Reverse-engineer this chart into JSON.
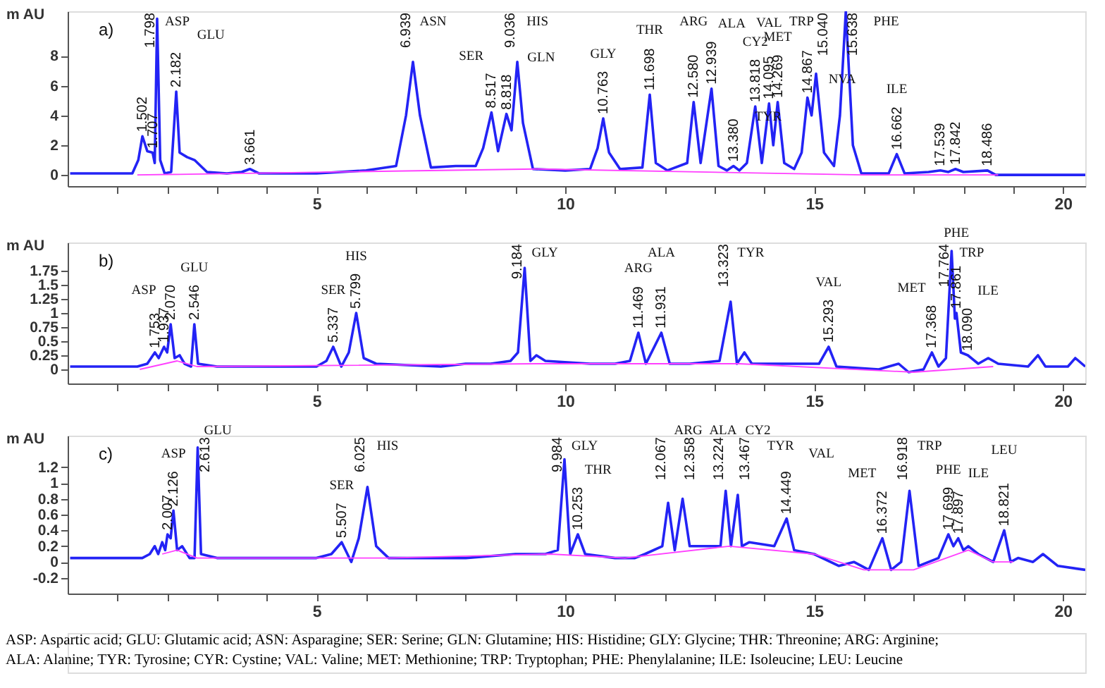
{
  "chart_data": [
    {
      "type": "line",
      "title": "a)",
      "ylabel": "m AU",
      "xlim": [
        0,
        20.45
      ],
      "ylim": [
        -0.75,
        11.0
      ],
      "yticks": [
        0,
        2,
        4,
        6,
        8
      ],
      "xticks": [
        {
          "value": 1,
          "label": null
        },
        {
          "value": 2,
          "label": null
        },
        {
          "value": 3,
          "label": null
        },
        {
          "value": 4,
          "label": null
        },
        5,
        {
          "value": 6,
          "label": null
        },
        {
          "value": 7,
          "label": null
        },
        {
          "value": 8,
          "label": null
        },
        {
          "value": 9,
          "label": null
        },
        10,
        {
          "value": 11,
          "label": null
        },
        {
          "value": 12,
          "label": null
        },
        {
          "value": 13,
          "label": null
        },
        {
          "value": 14,
          "label": null
        },
        15,
        {
          "value": 16,
          "label": null
        },
        {
          "value": 17,
          "label": null
        },
        {
          "value": 18,
          "label": null
        },
        {
          "value": 19,
          "label": null
        },
        20
      ],
      "grid": false,
      "series": [
        {
          "type": "line",
          "color": "#2323f5",
          "x": [
            0.05,
            1.3,
            1.42,
            1.502,
            1.6,
            1.707,
            1.75,
            1.798,
            1.86,
            1.95,
            2.08,
            2.182,
            2.25,
            2.4,
            2.55,
            2.8,
            3.2,
            3.5,
            3.661,
            3.85,
            5.0,
            6.0,
            6.6,
            6.8,
            6.939,
            7.08,
            7.3,
            7.8,
            8.2,
            8.35,
            8.517,
            8.65,
            8.818,
            8.92,
            9.036,
            9.15,
            9.35,
            10.0,
            10.5,
            10.65,
            10.763,
            10.88,
            11.1,
            11.55,
            11.698,
            11.82,
            12.05,
            12.45,
            12.58,
            12.72,
            12.939,
            13.08,
            13.25,
            13.38,
            13.5,
            13.65,
            13.818,
            13.95,
            14.095,
            14.18,
            14.269,
            14.4,
            14.6,
            14.75,
            14.867,
            14.95,
            15.04,
            15.2,
            15.4,
            15.52,
            15.638,
            15.78,
            15.95,
            16.5,
            16.662,
            16.82,
            17.3,
            17.539,
            17.7,
            17.842,
            18.0,
            18.486,
            18.65,
            20.45
          ],
          "values": [
            0.1,
            0.1,
            1.0,
            2.6,
            1.6,
            1.5,
            0.8,
            10.5,
            1.0,
            0.1,
            0.2,
            5.6,
            1.5,
            1.2,
            1.0,
            0.2,
            0.1,
            0.2,
            0.4,
            0.1,
            0.1,
            0.3,
            0.6,
            4.0,
            7.6,
            4.0,
            0.5,
            0.6,
            0.6,
            1.8,
            4.2,
            1.6,
            4.1,
            3.0,
            7.6,
            3.5,
            0.4,
            0.3,
            0.4,
            1.8,
            3.8,
            1.5,
            0.4,
            0.5,
            5.4,
            0.8,
            0.3,
            0.8,
            4.9,
            0.8,
            5.8,
            0.6,
            0.3,
            0.6,
            0.3,
            0.8,
            4.6,
            0.8,
            4.8,
            2.0,
            4.9,
            0.8,
            0.4,
            1.5,
            5.2,
            4.0,
            6.8,
            1.5,
            0.6,
            4.0,
            11.0,
            2.0,
            0.1,
            0.1,
            1.4,
            0.1,
            0.2,
            0.3,
            0.2,
            0.4,
            0.2,
            0.3,
            0.0,
            0.0
          ]
        },
        {
          "type": "line",
          "color": "#ff40ff",
          "x": [
            1.4,
            9.4,
            16.0,
            18.7
          ],
          "values": [
            0.0,
            0.4,
            0.0,
            0.0
          ]
        }
      ],
      "annotations": [
        {
          "text": "1.502",
          "x": 1.502,
          "y": 2.6
        },
        {
          "text": "1.707",
          "x": 1.707,
          "y": 1.5
        },
        {
          "text": "1.798",
          "x": 1.798,
          "y": 10.5
        },
        "ASP",
        {
          "text": "2.182",
          "x": 2.182,
          "y": 5.6
        },
        "GLU",
        {
          "text": "3.661",
          "x": 3.661,
          "y": 0.4
        },
        {
          "text": "6.939",
          "x": 6.939,
          "y": 7.6
        },
        "ASN",
        {
          "text": "8.517",
          "x": 8.517,
          "y": 4.2
        },
        "SER",
        {
          "text": "8.818",
          "x": 8.818,
          "y": 4.1
        },
        "GLN",
        {
          "text": "9.036",
          "x": 9.036,
          "y": 7.6
        },
        "HIS",
        {
          "text": "10.763",
          "x": 10.763,
          "y": 3.8
        },
        "GLY",
        {
          "text": "11.698",
          "x": 11.698,
          "y": 5.4
        },
        "THR",
        {
          "text": "12.580",
          "x": 12.58,
          "y": 4.9
        },
        "ARG",
        {
          "text": "12.939",
          "x": 12.939,
          "y": 5.8
        },
        "ALA",
        {
          "text": "13.380",
          "x": 13.38,
          "y": 0.6
        },
        "TYR",
        {
          "text": "13.818",
          "x": 13.818,
          "y": 4.6
        },
        "CY2",
        {
          "text": "14.095",
          "x": 14.095,
          "y": 4.8
        },
        "VAL",
        {
          "text": "14.269",
          "x": 14.269,
          "y": 4.9
        },
        "MET",
        {
          "text": "14.867",
          "x": 14.867,
          "y": 5.2
        },
        "NVA",
        {
          "text": "15.040",
          "x": 15.04,
          "y": 6.8
        },
        "TRP",
        {
          "text": "15.638",
          "x": 15.638,
          "y": 11.0
        },
        "PHE",
        {
          "text": "16.662",
          "x": 16.662,
          "y": 1.4
        },
        "ILE",
        {
          "text": "17.539",
          "x": 17.539,
          "y": 0.3
        },
        {
          "text": "17.842",
          "x": 17.842,
          "y": 0.4
        },
        {
          "text": "18.486",
          "x": 18.486,
          "y": 0.3
        }
      ]
    },
    {
      "type": "line",
      "title": "b)",
      "ylabel": "m AU",
      "xlim": [
        0,
        20.45
      ],
      "ylim": [
        -0.25,
        2.25
      ],
      "yticks": [
        0,
        0.25,
        0.5,
        0.75,
        1,
        1.25,
        1.5,
        1.75
      ],
      "xticks": [
        {
          "value": 1,
          "label": null
        },
        {
          "value": 2,
          "label": null
        },
        {
          "value": 3,
          "label": null
        },
        {
          "value": 4,
          "label": null
        },
        5,
        {
          "value": 6,
          "label": null
        },
        {
          "value": 7,
          "label": null
        },
        {
          "value": 8,
          "label": null
        },
        {
          "value": 9,
          "label": null
        },
        10,
        {
          "value": 11,
          "label": null
        },
        {
          "value": 12,
          "label": null
        },
        {
          "value": 13,
          "label": null
        },
        {
          "value": 14,
          "label": null
        },
        15,
        {
          "value": 16,
          "label": null
        },
        {
          "value": 17,
          "label": null
        },
        {
          "value": 18,
          "label": null
        },
        {
          "value": 19,
          "label": null
        },
        20
      ],
      "grid": false,
      "series": [
        {
          "type": "line",
          "color": "#2323f5",
          "x": [
            0.05,
            1.4,
            1.6,
            1.753,
            1.83,
            1.937,
            2.0,
            2.07,
            2.15,
            2.25,
            2.35,
            2.48,
            2.546,
            2.62,
            3.0,
            5.0,
            5.2,
            5.337,
            5.5,
            5.65,
            5.799,
            5.95,
            6.2,
            7.5,
            8.0,
            8.5,
            8.9,
            9.05,
            9.184,
            9.3,
            9.42,
            9.6,
            10.5,
            11.0,
            11.3,
            11.469,
            11.62,
            11.931,
            12.1,
            12.5,
            13.1,
            13.323,
            13.45,
            13.6,
            13.75,
            14.8,
            15.1,
            15.293,
            15.45,
            16.3,
            16.7,
            16.9,
            17.2,
            17.368,
            17.5,
            17.65,
            17.764,
            17.83,
            17.861,
            17.95,
            18.09,
            18.3,
            18.5,
            18.7,
            19.3,
            19.5,
            19.65,
            20.1,
            20.25,
            20.45
          ],
          "values": [
            0.05,
            0.05,
            0.1,
            0.3,
            0.2,
            0.4,
            0.3,
            0.8,
            0.2,
            0.25,
            0.1,
            0.05,
            0.8,
            0.1,
            0.05,
            0.05,
            0.15,
            0.4,
            0.05,
            0.3,
            1.0,
            0.2,
            0.1,
            0.05,
            0.1,
            0.1,
            0.15,
            0.3,
            1.8,
            0.15,
            0.25,
            0.15,
            0.1,
            0.1,
            0.15,
            0.65,
            0.1,
            0.65,
            0.1,
            0.1,
            0.15,
            1.2,
            0.1,
            0.3,
            0.1,
            0.1,
            0.1,
            0.4,
            0.05,
            0.0,
            0.1,
            -0.05,
            0.0,
            0.3,
            0.05,
            0.2,
            2.1,
            0.9,
            1.0,
            0.3,
            0.25,
            0.1,
            0.2,
            0.1,
            0.05,
            0.25,
            0.05,
            0.05,
            0.2,
            0.05
          ]
        },
        {
          "type": "line",
          "color": "#ff40ff",
          "x": [
            1.45,
            2.2,
            2.6,
            9.4,
            13.5,
            17.0,
            18.6
          ],
          "values": [
            0.0,
            0.15,
            0.05,
            0.1,
            0.1,
            -0.05,
            0.05
          ]
        }
      ],
      "annotations": [
        {
          "text": "1.753",
          "x": 1.753,
          "y": 0.3
        },
        {
          "text": "1.937",
          "x": 1.937,
          "y": 0.4
        },
        "ASP",
        {
          "text": "2.070",
          "x": 2.07,
          "y": 0.8
        },
        {
          "text": "2.546",
          "x": 2.546,
          "y": 0.8
        },
        "GLU",
        {
          "text": "5.337",
          "x": 5.337,
          "y": 0.4
        },
        "SER",
        {
          "text": "5.799",
          "x": 5.799,
          "y": 1.0
        },
        "HIS",
        {
          "text": "9.184",
          "x": 9.184,
          "y": 1.8
        },
        "GLY",
        {
          "text": "11.469",
          "x": 11.469,
          "y": 0.65
        },
        "ARG",
        {
          "text": "11.931",
          "x": 11.931,
          "y": 0.65
        },
        "ALA",
        {
          "text": "13.323",
          "x": 13.323,
          "y": 1.2
        },
        "TYR",
        {
          "text": "15.293",
          "x": 15.293,
          "y": 0.4
        },
        "VAL",
        {
          "text": "17.368",
          "x": 17.368,
          "y": 0.3
        },
        "MET",
        {
          "text": "17.764",
          "x": 17.764,
          "y": 2.1
        },
        "TRP",
        {
          "text": "17.861",
          "x": 17.861,
          "y": 1.0
        },
        "PHE",
        {
          "text": "18.090",
          "x": 18.09,
          "y": 0.25
        },
        "ILE"
      ]
    },
    {
      "type": "line",
      "title": "c)",
      "ylabel": "m AU",
      "xlim": [
        0,
        20.45
      ],
      "ylim": [
        -0.4,
        1.6
      ],
      "yticks": [
        -0.2,
        0,
        0.2,
        0.4,
        0.6,
        0.8,
        1,
        1.2
      ],
      "xticks": [
        {
          "value": 1,
          "label": null
        },
        {
          "value": 2,
          "label": null
        },
        {
          "value": 3,
          "label": null
        },
        {
          "value": 4,
          "label": null
        },
        5,
        {
          "value": 6,
          "label": null
        },
        {
          "value": 7,
          "label": null
        },
        {
          "value": 8,
          "label": null
        },
        {
          "value": 9,
          "label": null
        },
        10,
        {
          "value": 11,
          "label": null
        },
        {
          "value": 12,
          "label": null
        },
        {
          "value": 13,
          "label": null
        },
        {
          "value": 14,
          "label": null
        },
        15,
        {
          "value": 16,
          "label": null
        },
        {
          "value": 17,
          "label": null
        },
        {
          "value": 18,
          "label": null
        },
        {
          "value": 19,
          "label": null
        },
        20
      ],
      "grid": false,
      "series": [
        {
          "type": "line",
          "color": "#2323f5",
          "x": [
            0.05,
            1.5,
            1.65,
            1.75,
            1.82,
            1.9,
            1.96,
            2.007,
            2.07,
            2.126,
            2.2,
            2.3,
            2.45,
            2.55,
            2.613,
            2.68,
            3.0,
            3.4,
            5.0,
            5.3,
            5.507,
            5.7,
            5.85,
            6.025,
            6.2,
            6.45,
            8.0,
            9.0,
            9.6,
            9.85,
            9.984,
            10.1,
            10.253,
            10.4,
            11.0,
            11.4,
            11.6,
            11.95,
            12.067,
            12.2,
            12.358,
            12.5,
            13.0,
            13.12,
            13.224,
            13.33,
            13.467,
            13.55,
            13.7,
            14.2,
            14.449,
            14.6,
            15.0,
            15.5,
            15.8,
            16.1,
            16.372,
            16.55,
            16.75,
            16.918,
            17.1,
            17.5,
            17.699,
            17.8,
            17.897,
            18.0,
            18.1,
            18.3,
            18.6,
            18.821,
            18.95,
            19.1,
            19.4,
            19.6,
            19.9,
            20.45
          ],
          "values": [
            0.05,
            0.05,
            0.1,
            0.2,
            0.1,
            0.25,
            0.15,
            0.35,
            0.3,
            0.65,
            0.15,
            0.2,
            0.05,
            0.05,
            1.45,
            0.1,
            0.05,
            0.05,
            0.05,
            0.1,
            0.25,
            0.0,
            0.3,
            0.95,
            0.2,
            0.05,
            0.05,
            0.1,
            0.1,
            0.15,
            1.3,
            0.1,
            0.35,
            0.1,
            0.05,
            0.05,
            0.1,
            0.2,
            0.75,
            0.15,
            0.8,
            0.2,
            0.2,
            0.2,
            0.9,
            0.2,
            0.85,
            0.2,
            0.25,
            0.2,
            0.55,
            0.15,
            0.1,
            -0.05,
            0.0,
            -0.1,
            0.3,
            -0.1,
            0.0,
            0.9,
            -0.05,
            0.05,
            0.35,
            0.2,
            0.3,
            0.15,
            0.2,
            0.1,
            0.0,
            0.4,
            0.0,
            0.05,
            0.0,
            0.1,
            -0.05,
            -0.1
          ]
        },
        {
          "type": "line",
          "color": "#ff40ff",
          "x": [
            1.9,
            2.2,
            2.6,
            6.4,
            9.7,
            11.2,
            13.3,
            15.0,
            16.0,
            17.0,
            18.1,
            18.6,
            19.0
          ],
          "values": [
            0.1,
            0.15,
            0.05,
            0.05,
            0.1,
            0.05,
            0.2,
            0.1,
            -0.1,
            -0.1,
            0.15,
            0.0,
            0.0
          ]
        }
      ],
      "annotations": [
        {
          "text": "2.007",
          "x": 2.007,
          "y": 0.35
        },
        {
          "text": "2.126",
          "x": 2.126,
          "y": 0.65
        },
        "ASP",
        {
          "text": "2.613",
          "x": 2.613,
          "y": 1.45
        },
        "GLU",
        {
          "text": "5.507",
          "x": 5.507,
          "y": 0.25
        },
        "SER",
        {
          "text": "6.025",
          "x": 6.025,
          "y": 0.95
        },
        "HIS",
        {
          "text": "9.984",
          "x": 9.984,
          "y": 1.3
        },
        "GLY",
        {
          "text": "10.253",
          "x": 10.253,
          "y": 0.35
        },
        "THR",
        {
          "text": "12.067",
          "x": 12.067,
          "y": 0.75
        },
        "ARG",
        {
          "text": "12.358",
          "x": 12.358,
          "y": 0.8
        },
        "ALA",
        {
          "text": "13.224",
          "x": 13.224,
          "y": 0.9
        },
        "TYR",
        {
          "text": "13.467",
          "x": 13.467,
          "y": 0.85
        },
        "CY2",
        {
          "text": "14.449",
          "x": 14.449,
          "y": 0.55
        },
        "VAL",
        {
          "text": "16.372",
          "x": 16.372,
          "y": 0.3
        },
        "MET",
        {
          "text": "16.918",
          "x": 16.918,
          "y": 0.9
        },
        "TRP",
        {
          "text": "17.699",
          "x": 17.699,
          "y": 0.35
        },
        "PHE",
        {
          "text": "17.897",
          "x": 17.897,
          "y": 0.3
        },
        "ILE",
        {
          "text": "18.821",
          "x": 18.821,
          "y": 0.4
        },
        "LEU"
      ]
    },
    {
      "type": "other",
      "annotations": [
        "ASP: Aspartic acid; GLU: Glutamic acid; ASN: Asparagine; SER: Serine; GLN: Glutamine; HIS: Histidine; GLY: Glycine; THR: Threonine; ARG: Arginine; ALA: Alanine; TYR: Tyrosine; CYR: Cystine; VAL: Valine; MET: Methionine; TRP: Tryptophan; PHE: Phenylalanine; ILE: Isoleucine; LEU: Leucine"
      ]
    }
  ]
}
